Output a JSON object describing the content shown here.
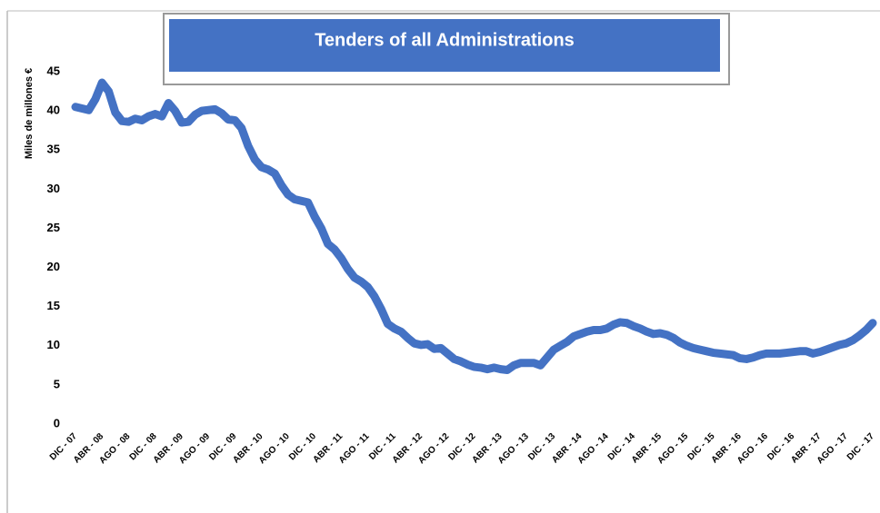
{
  "chart_data": {
    "type": "line",
    "title": "Tenders of all Administrations",
    "y_label": "Miles de millones €",
    "categories": [
      "DIC - 07",
      null,
      null,
      null,
      "ABR - 08",
      null,
      null,
      null,
      "AGO - 08",
      null,
      null,
      null,
      "DIC - 08",
      null,
      null,
      null,
      "ABR - 09",
      null,
      null,
      null,
      "AGO - 09",
      null,
      null,
      null,
      "DIC - 09",
      null,
      null,
      null,
      "ABR - 10",
      null,
      null,
      null,
      "AGO - 10",
      null,
      null,
      null,
      "DIC - 10",
      null,
      null,
      null,
      "ABR - 11",
      null,
      null,
      null,
      "AGO - 11",
      null,
      null,
      null,
      "DIC - 11",
      null,
      null,
      null,
      "ABR - 12",
      null,
      null,
      null,
      "AGO - 12",
      null,
      null,
      null,
      "DIC - 12",
      null,
      null,
      null,
      "ABR - 13",
      null,
      null,
      null,
      "AGO - 13",
      null,
      null,
      null,
      "DIC - 13",
      null,
      null,
      null,
      "ABR - 14",
      null,
      null,
      null,
      "AGO - 14",
      null,
      null,
      null,
      "DIC - 14",
      null,
      null,
      null,
      "ABR - 15",
      null,
      null,
      null,
      "AGO - 15",
      null,
      null,
      null,
      "DIC - 15",
      null,
      null,
      null,
      "ABR - 16",
      null,
      null,
      null,
      "AGO - 16",
      null,
      null,
      null,
      "DIC - 16",
      null,
      null,
      null,
      "ABR - 17",
      null,
      null,
      null,
      "AGO - 17",
      null,
      null,
      null,
      "DIC - 17"
    ],
    "values": [
      40.5,
      40.3,
      40.1,
      41.5,
      43.6,
      42.5,
      39.8,
      38.7,
      38.6,
      39.0,
      38.8,
      39.3,
      39.6,
      39.3,
      41.0,
      40.0,
      38.5,
      38.6,
      39.5,
      40.0,
      40.1,
      40.2,
      39.7,
      38.9,
      38.8,
      37.8,
      35.5,
      33.8,
      32.8,
      32.5,
      32.0,
      30.5,
      29.3,
      28.7,
      28.5,
      28.3,
      26.5,
      25.0,
      23.0,
      22.3,
      21.2,
      19.8,
      18.7,
      18.2,
      17.5,
      16.3,
      14.7,
      12.8,
      12.2,
      11.8,
      11.0,
      10.3,
      10.1,
      10.2,
      9.6,
      9.7,
      9.0,
      8.3,
      8.0,
      7.6,
      7.3,
      7.2,
      7.0,
      7.2,
      7.0,
      6.9,
      7.5,
      7.8,
      7.8,
      7.8,
      7.5,
      8.5,
      9.5,
      10.0,
      10.5,
      11.2,
      11.5,
      11.8,
      12.0,
      12.0,
      12.2,
      12.7,
      13.0,
      12.9,
      12.5,
      12.2,
      11.8,
      11.5,
      11.6,
      11.4,
      11.0,
      10.4,
      10.0,
      9.7,
      9.5,
      9.3,
      9.1,
      9.0,
      8.9,
      8.8,
      8.4,
      8.3,
      8.5,
      8.8,
      9.0,
      9.0,
      9.0,
      9.1,
      9.2,
      9.3,
      9.3,
      9.0,
      9.2,
      9.5,
      9.8,
      10.1,
      10.3,
      10.7,
      11.3,
      12.0,
      12.9
    ],
    "color": "#4472c4",
    "ylim": [
      0,
      45
    ],
    "yticks": [
      0,
      5,
      10,
      15,
      20,
      25,
      30,
      35,
      40,
      45
    ],
    "grid": false
  }
}
